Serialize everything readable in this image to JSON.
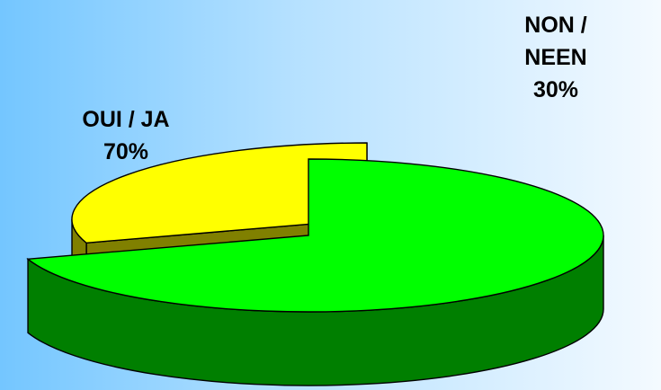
{
  "chart_data": {
    "type": "pie",
    "style": "3d-exploded",
    "slices": [
      {
        "label_lines": [
          "OUI / JA",
          "70%"
        ],
        "value": 70,
        "color": "#00ff00",
        "side_color": "#007f00"
      },
      {
        "label_lines": [
          "NON /",
          "NEEN",
          "30%"
        ],
        "value": 30,
        "color": "#ffff00",
        "side_color": "#808000"
      }
    ],
    "legend": "none"
  }
}
